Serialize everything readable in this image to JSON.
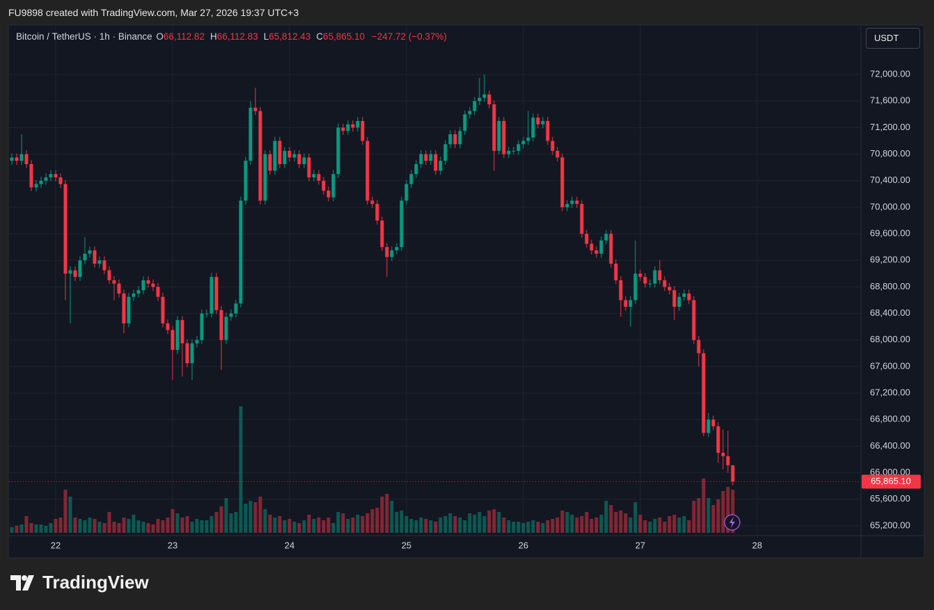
{
  "header": {
    "attribution": "FU9898 created with TradingView.com, Mar 27, 2026 19:37 UTC+3"
  },
  "footer": {
    "logo": "TradingView"
  },
  "chart_data": {
    "type": "candlestick",
    "title": "Bitcoin / TetherUS · 1h · Binance",
    "ohlc_legend": [
      {
        "key": "O",
        "value": "66,112.82"
      },
      {
        "key": "H",
        "value": "66,112.83"
      },
      {
        "key": "L",
        "value": "65,812.43"
      },
      {
        "key": "C",
        "value": "65,865.10"
      }
    ],
    "change": "−247.72 (−0.37%)",
    "currency": "USDT",
    "up_color": "#089981",
    "down_color": "#f23645",
    "grid": true,
    "last_price": {
      "value": 65865.1,
      "label": "65,865.10"
    },
    "open": [
      70700,
      70750,
      70700,
      70800,
      70650,
      70300,
      70350,
      70400,
      70450,
      70500,
      70450,
      70350,
      69000,
      69050,
      68950,
      69200,
      69300,
      69350,
      69150,
      69200,
      69050,
      68900,
      68850,
      68700,
      68250,
      68650,
      68700,
      68750,
      68900,
      68850,
      68800,
      68650,
      68250,
      68150,
      67850,
      68300,
      67950,
      67650,
      67950,
      68000,
      68400,
      68400,
      68950,
      68450,
      68000,
      68350,
      68400,
      68550,
      70100,
      70700,
      71500,
      71450,
      70100,
      70800,
      70550,
      71000,
      70650,
      70850,
      70750,
      70800,
      70650,
      70750,
      70450,
      70500,
      70400,
      70250,
      70150,
      70500,
      71200,
      71150,
      71250,
      71200,
      71300,
      71000,
      70100,
      70050,
      69800,
      69400,
      69250,
      69350,
      69400,
      70100,
      70350,
      70500,
      70650,
      70800,
      70700,
      70800,
      70550,
      70700,
      70950,
      71100,
      70950,
      71150,
      71400,
      71450,
      71600,
      71650,
      71700,
      71550,
      70850,
      71300,
      70800,
      70850,
      70850,
      70950,
      71000,
      71050,
      71350,
      71250,
      71300,
      71000,
      70850,
      70750,
      70000,
      70050,
      70100,
      70050,
      69600,
      69450,
      69350,
      69300,
      69500,
      69600,
      69150,
      68900,
      68600,
      68500,
      68600,
      69000,
      68950,
      68850,
      68850,
      69050,
      68900,
      68800,
      68750,
      68500,
      68650,
      68700,
      68600,
      68000,
      67800,
      66600,
      66800,
      66700,
      66300,
      66250,
      66112.82
    ],
    "high": [
      70810,
      70810,
      71100,
      70860,
      70710,
      70410,
      70460,
      70510,
      70560,
      70560,
      70510,
      70410,
      69110,
      69110,
      69260,
      69550,
      69410,
      69410,
      69260,
      69260,
      69110,
      68960,
      68910,
      68760,
      68710,
      68760,
      68810,
      68960,
      68960,
      68910,
      68860,
      68710,
      68310,
      68210,
      68360,
      68360,
      68010,
      68010,
      68060,
      68460,
      68460,
      69010,
      69010,
      68510,
      68410,
      68460,
      68610,
      70160,
      70760,
      71600,
      71800,
      71510,
      70860,
      70860,
      71060,
      71060,
      70910,
      70910,
      70860,
      70860,
      70810,
      70810,
      70560,
      70560,
      70460,
      70310,
      70560,
      71260,
      71260,
      71310,
      71310,
      71360,
      71360,
      71060,
      70160,
      70110,
      69860,
      69460,
      69410,
      69460,
      70160,
      70410,
      70560,
      70710,
      70860,
      70860,
      70860,
      70860,
      70760,
      71010,
      71160,
      71160,
      71210,
      71460,
      71510,
      71660,
      71950,
      72000,
      71760,
      71610,
      71360,
      71360,
      70910,
      70910,
      71010,
      71060,
      71450,
      71410,
      71410,
      71360,
      71360,
      71060,
      70910,
      70810,
      70110,
      70160,
      70160,
      70110,
      69660,
      69510,
      69410,
      69560,
      69660,
      69660,
      69210,
      68960,
      68660,
      68660,
      69500,
      69060,
      69010,
      68910,
      69110,
      69200,
      68960,
      68860,
      68810,
      68710,
      68760,
      68760,
      68660,
      68060,
      67860,
      66900,
      66860,
      66760,
      66650,
      66630,
      66112.83
    ],
    "low": [
      70640,
      70640,
      70640,
      70590,
      70240,
      70240,
      70290,
      70340,
      70390,
      70390,
      70290,
      68600,
      68250,
      68890,
      68890,
      69140,
      69240,
      69090,
      69090,
      68990,
      68840,
      68600,
      68640,
      68100,
      68190,
      68590,
      68640,
      68690,
      68790,
      68740,
      68590,
      68190,
      68090,
      67400,
      67790,
      67450,
      67590,
      67400,
      67890,
      67940,
      68340,
      68340,
      68390,
      67550,
      67940,
      68290,
      68340,
      68490,
      70040,
      70640,
      71390,
      70040,
      70040,
      70490,
      70490,
      70590,
      70590,
      70690,
      70690,
      70590,
      70590,
      70390,
      70390,
      70340,
      70190,
      70090,
      70090,
      70440,
      71090,
      71090,
      71140,
      71140,
      70940,
      70040,
      69990,
      69740,
      69340,
      68950,
      69190,
      69290,
      69340,
      70040,
      70290,
      70440,
      70590,
      70640,
      70640,
      70490,
      70490,
      70640,
      70890,
      70890,
      70890,
      71090,
      71340,
      71390,
      71540,
      71590,
      71490,
      70550,
      70790,
      70740,
      70740,
      70790,
      70790,
      70890,
      70940,
      70990,
      71190,
      71190,
      70940,
      70790,
      70690,
      69940,
      69940,
      69990,
      69990,
      69540,
      69390,
      69290,
      69240,
      69240,
      69440,
      69090,
      68840,
      68350,
      68440,
      68200,
      68540,
      68890,
      68790,
      68790,
      68790,
      68840,
      68740,
      68690,
      68300,
      68440,
      68590,
      68540,
      67940,
      67600,
      66550,
      66540,
      66640,
      66150,
      66050,
      66000,
      65812.43
    ],
    "close": [
      70750,
      70700,
      70800,
      70650,
      70300,
      70350,
      70400,
      70450,
      70500,
      70450,
      70350,
      69000,
      69050,
      68950,
      69200,
      69300,
      69350,
      69150,
      69200,
      69050,
      68900,
      68850,
      68700,
      68250,
      68650,
      68700,
      68750,
      68900,
      68850,
      68800,
      68650,
      68250,
      68150,
      67850,
      68300,
      67950,
      67650,
      67950,
      68000,
      68400,
      68400,
      68950,
      68450,
      68000,
      68350,
      68400,
      68550,
      70100,
      70700,
      71500,
      71450,
      70100,
      70800,
      70550,
      71000,
      70650,
      70850,
      70750,
      70800,
      70650,
      70750,
      70450,
      70500,
      70400,
      70250,
      70150,
      70500,
      71200,
      71150,
      71250,
      71200,
      71300,
      71000,
      70100,
      70050,
      69800,
      69400,
      69250,
      69350,
      69400,
      70100,
      70350,
      70500,
      70650,
      70800,
      70700,
      70800,
      70550,
      70700,
      70950,
      71100,
      70950,
      71150,
      71400,
      71450,
      71600,
      71650,
      71700,
      71550,
      70850,
      71300,
      70800,
      70850,
      70850,
      70950,
      71000,
      71050,
      71350,
      71250,
      71300,
      71000,
      70850,
      70750,
      70000,
      70050,
      70100,
      70050,
      69600,
      69450,
      69350,
      69300,
      69500,
      69600,
      69150,
      68900,
      68600,
      68500,
      68600,
      69000,
      68950,
      68850,
      68850,
      69050,
      68900,
      68800,
      68750,
      68500,
      68650,
      68700,
      68600,
      68000,
      67800,
      66600,
      66800,
      66700,
      66300,
      66250,
      66112.82,
      65865.1
    ],
    "volume": [
      8,
      10,
      12,
      24,
      14,
      12,
      12,
      10,
      14,
      20,
      22,
      62,
      52,
      22,
      20,
      18,
      22,
      20,
      16,
      14,
      30,
      16,
      14,
      22,
      20,
      26,
      18,
      16,
      14,
      12,
      20,
      18,
      22,
      34,
      28,
      22,
      24,
      16,
      20,
      18,
      18,
      24,
      30,
      38,
      50,
      28,
      30,
      182,
      42,
      46,
      44,
      52,
      34,
      26,
      22,
      24,
      18,
      20,
      16,
      14,
      18,
      26,
      20,
      22,
      18,
      22,
      14,
      30,
      28,
      20,
      22,
      26,
      24,
      28,
      34,
      36,
      52,
      56,
      46,
      30,
      32,
      24,
      20,
      18,
      22,
      20,
      18,
      16,
      22,
      24,
      28,
      24,
      22,
      18,
      28,
      26,
      30,
      24,
      32,
      34,
      30,
      22,
      18,
      16,
      16,
      14,
      16,
      18,
      16,
      14,
      18,
      20,
      22,
      32,
      30,
      26,
      22,
      24,
      30,
      20,
      22,
      26,
      46,
      40,
      30,
      32,
      28,
      22,
      44,
      26,
      18,
      16,
      20,
      22,
      16,
      24,
      26,
      22,
      24,
      18,
      46,
      50,
      78,
      50,
      40,
      48,
      60,
      66,
      62
    ],
    "xlim": [
      -0.57,
      174.3
    ],
    "xticks": [
      {
        "value": 9,
        "label": "22"
      },
      {
        "value": 33,
        "label": "23"
      },
      {
        "value": 57,
        "label": "24"
      },
      {
        "value": 81,
        "label": "25"
      },
      {
        "value": 105,
        "label": "26"
      },
      {
        "value": 129,
        "label": "27"
      },
      {
        "value": 153,
        "label": "28"
      }
    ],
    "ylim": [
      65053,
      72735
    ],
    "yticks": [
      {
        "value": 65200,
        "label": "65,200.00"
      },
      {
        "value": 65600,
        "label": "65,600.00"
      },
      {
        "value": 66000,
        "label": "66,000.00"
      },
      {
        "value": 66400,
        "label": "66,400.00"
      },
      {
        "value": 66800,
        "label": "66,800.00"
      },
      {
        "value": 67200,
        "label": "67,200.00"
      },
      {
        "value": 67600,
        "label": "67,600.00"
      },
      {
        "value": 68000,
        "label": "68,000.00"
      },
      {
        "value": 68400,
        "label": "68,400.00"
      },
      {
        "value": 68800,
        "label": "68,800.00"
      },
      {
        "value": 69200,
        "label": "69,200.00"
      },
      {
        "value": 69600,
        "label": "69,600.00"
      },
      {
        "value": 70000,
        "label": "70,000.00"
      },
      {
        "value": 70400,
        "label": "70,400.00"
      },
      {
        "value": 70800,
        "label": "70,800.00"
      },
      {
        "value": 71200,
        "label": "71,200.00"
      },
      {
        "value": 71600,
        "label": "71,600.00"
      },
      {
        "value": 72000,
        "label": "72,000.00"
      }
    ]
  }
}
